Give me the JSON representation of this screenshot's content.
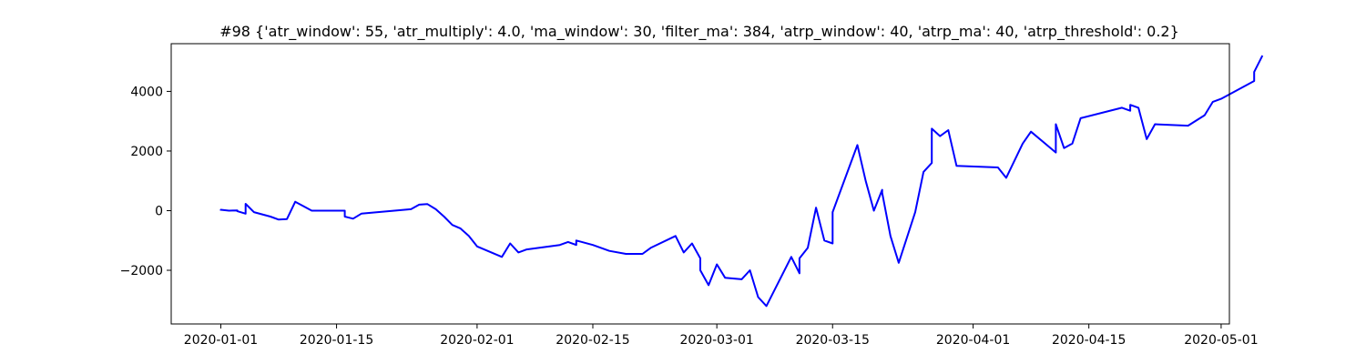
{
  "chart_data": {
    "type": "line",
    "title": "#98 {'atr_window': 55, 'atr_multiply': 4.0, 'ma_window': 30, 'filter_ma': 384, 'atrp_window': 40, 'atrp_ma': 40, 'atrp_threshold': 0.2}",
    "xlabel": "",
    "ylabel": "",
    "x_axis_type": "date",
    "xlim": [
      "2019-12-26",
      "2020-05-02"
    ],
    "ylim": [
      -3800,
      5600
    ],
    "x_ticks": [
      "2020-01-01",
      "2020-01-15",
      "2020-02-01",
      "2020-02-15",
      "2020-03-01",
      "2020-03-15",
      "2020-04-01",
      "2020-04-15",
      "2020-05-01"
    ],
    "y_ticks": [
      -2000,
      0,
      2000,
      4000
    ],
    "y_tick_labels": [
      "−2000",
      "0",
      "2000",
      "4000"
    ],
    "grid": false,
    "legend": "none",
    "series": [
      {
        "color": "#0000ff",
        "points": [
          [
            "2020-01-01",
            0
          ],
          [
            "2020-01-01",
            30
          ],
          [
            "2020-01-02",
            0
          ],
          [
            "2020-01-03",
            10
          ],
          [
            "2020-01-03",
            -20
          ],
          [
            "2020-01-04",
            -100
          ],
          [
            "2020-01-04",
            230
          ],
          [
            "2020-01-05",
            -50
          ],
          [
            "2020-01-07",
            -200
          ],
          [
            "2020-01-08",
            -300
          ],
          [
            "2020-01-09",
            -280
          ],
          [
            "2020-01-10",
            300
          ],
          [
            "2020-01-11",
            150
          ],
          [
            "2020-01-12",
            0
          ],
          [
            "2020-01-16",
            0
          ],
          [
            "2020-01-16",
            -200
          ],
          [
            "2020-01-17",
            -270
          ],
          [
            "2020-01-18",
            -100
          ],
          [
            "2020-01-24",
            50
          ],
          [
            "2020-01-25",
            200
          ],
          [
            "2020-01-26",
            220
          ],
          [
            "2020-01-27",
            50
          ],
          [
            "2020-01-28",
            -200
          ],
          [
            "2020-01-29",
            -480
          ],
          [
            "2020-01-30",
            -600
          ],
          [
            "2020-01-31",
            -850
          ],
          [
            "2020-02-01",
            -1200
          ],
          [
            "2020-02-04",
            -1550
          ],
          [
            "2020-02-05",
            -1100
          ],
          [
            "2020-02-06",
            -1400
          ],
          [
            "2020-02-07",
            -1300
          ],
          [
            "2020-02-11",
            -1150
          ],
          [
            "2020-02-12",
            -1050
          ],
          [
            "2020-02-13",
            -1150
          ],
          [
            "2020-02-13",
            -1000
          ],
          [
            "2020-02-15",
            -1150
          ],
          [
            "2020-02-17",
            -1350
          ],
          [
            "2020-02-19",
            -1450
          ],
          [
            "2020-02-21",
            -1450
          ],
          [
            "2020-02-22",
            -1250
          ],
          [
            "2020-02-25",
            -850
          ],
          [
            "2020-02-26",
            -1400
          ],
          [
            "2020-02-27",
            -1100
          ],
          [
            "2020-02-28",
            -1600
          ],
          [
            "2020-02-28",
            -2000
          ],
          [
            "2020-02-29",
            -2500
          ],
          [
            "2020-03-01",
            -1800
          ],
          [
            "2020-03-02",
            -2250
          ],
          [
            "2020-03-04",
            -2300
          ],
          [
            "2020-03-05",
            -2000
          ],
          [
            "2020-03-06",
            -2900
          ],
          [
            "2020-03-07",
            -3200
          ],
          [
            "2020-03-10",
            -1550
          ],
          [
            "2020-03-11",
            -2100
          ],
          [
            "2020-03-11",
            -1600
          ],
          [
            "2020-03-12",
            -1250
          ],
          [
            "2020-03-13",
            100
          ],
          [
            "2020-03-14",
            -1000
          ],
          [
            "2020-03-15",
            -1100
          ],
          [
            "2020-03-15",
            -50
          ],
          [
            "2020-03-18",
            2200
          ],
          [
            "2020-03-19",
            1000
          ],
          [
            "2020-03-20",
            0
          ],
          [
            "2020-03-21",
            700
          ],
          [
            "2020-03-21",
            600
          ],
          [
            "2020-03-22",
            -850
          ],
          [
            "2020-03-23",
            -1750
          ],
          [
            "2020-03-25",
            -50
          ],
          [
            "2020-03-26",
            1300
          ],
          [
            "2020-03-27",
            1600
          ],
          [
            "2020-03-27",
            2750
          ],
          [
            "2020-03-28",
            2500
          ],
          [
            "2020-03-29",
            2700
          ],
          [
            "2020-03-30",
            1500
          ],
          [
            "2020-04-04",
            1450
          ],
          [
            "2020-04-05",
            1100
          ],
          [
            "2020-04-07",
            2250
          ],
          [
            "2020-04-08",
            2650
          ],
          [
            "2020-04-11",
            1950
          ],
          [
            "2020-04-11",
            2900
          ],
          [
            "2020-04-12",
            2100
          ],
          [
            "2020-04-13",
            2250
          ],
          [
            "2020-04-14",
            3100
          ],
          [
            "2020-04-19",
            3450
          ],
          [
            "2020-04-20",
            3350
          ],
          [
            "2020-04-20",
            3550
          ],
          [
            "2020-04-21",
            3450
          ],
          [
            "2020-04-22",
            2400
          ],
          [
            "2020-04-23",
            2900
          ],
          [
            "2020-04-27",
            2850
          ],
          [
            "2020-04-29",
            3200
          ],
          [
            "2020-04-30",
            3650
          ],
          [
            "2020-05-01",
            3750
          ],
          [
            "2020-05-05",
            4350
          ],
          [
            "2020-05-05",
            4650
          ],
          [
            "2020-05-06",
            5200
          ]
        ]
      }
    ]
  }
}
